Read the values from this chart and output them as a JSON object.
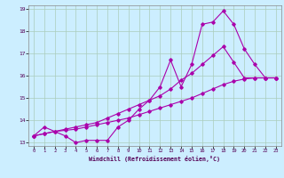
{
  "xlabel": "Windchill (Refroidissement éolien,°C)",
  "bg_color": "#cceeff",
  "grid_color": "#aaccbb",
  "line_color": "#aa00aa",
  "xlim": [
    0,
    23
  ],
  "ylim": [
    13,
    19
  ],
  "yticks": [
    13,
    14,
    15,
    16,
    17,
    18,
    19
  ],
  "xticks": [
    0,
    1,
    2,
    3,
    4,
    5,
    6,
    7,
    8,
    9,
    10,
    11,
    12,
    13,
    14,
    15,
    16,
    17,
    18,
    19,
    20,
    21,
    22,
    23
  ],
  "series": [
    {
      "x": [
        0,
        1,
        3,
        4,
        5,
        6,
        7,
        8,
        9,
        10,
        11,
        12,
        13,
        14,
        15,
        16,
        17,
        18,
        19,
        20,
        21,
        22,
        23
      ],
      "y": [
        13.3,
        13.7,
        13.3,
        13.0,
        13.1,
        13.1,
        13.1,
        13.7,
        14.0,
        14.5,
        14.9,
        15.5,
        16.7,
        15.5,
        16.5,
        18.3,
        18.4,
        18.9,
        18.3,
        17.2,
        16.5,
        15.9,
        15.9
      ]
    },
    {
      "x": [
        0,
        1,
        2,
        3,
        4,
        5,
        6,
        7,
        8,
        9,
        10,
        11,
        12,
        13,
        14,
        15,
        16,
        17,
        18,
        19,
        20,
        21,
        22,
        23
      ],
      "y": [
        13.3,
        13.4,
        13.5,
        13.6,
        13.7,
        13.8,
        13.9,
        14.1,
        14.3,
        14.5,
        14.7,
        14.9,
        15.1,
        15.4,
        15.8,
        16.1,
        16.5,
        16.9,
        17.3,
        16.6,
        15.9,
        15.9,
        15.9,
        15.9
      ]
    },
    {
      "x": [
        0,
        1,
        2,
        3,
        4,
        5,
        6,
        7,
        8,
        9,
        10,
        11,
        12,
        13,
        14,
        15,
        16,
        17,
        18,
        19,
        20,
        21,
        22,
        23
      ],
      "y": [
        13.3,
        13.4,
        13.5,
        13.55,
        13.6,
        13.7,
        13.8,
        13.9,
        14.0,
        14.1,
        14.25,
        14.4,
        14.55,
        14.7,
        14.85,
        15.0,
        15.2,
        15.4,
        15.6,
        15.75,
        15.85,
        15.9,
        15.9,
        15.9
      ]
    }
  ]
}
